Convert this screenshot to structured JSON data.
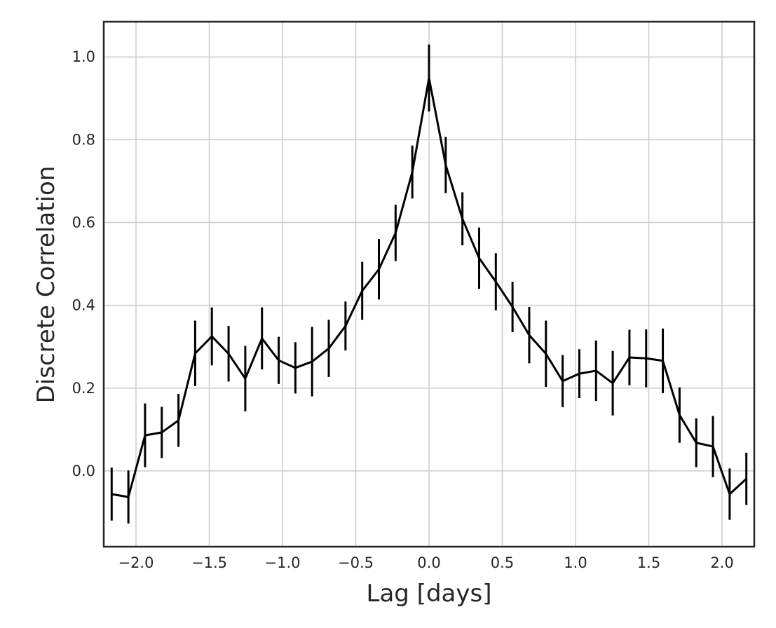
{
  "chart_data": {
    "type": "line",
    "xlabel": "Lag [days]",
    "ylabel": "Discrete Correlation",
    "x": [
      -2.166,
      -2.052,
      -1.938,
      -1.824,
      -1.71,
      -1.596,
      -1.482,
      -1.368,
      -1.254,
      -1.14,
      -1.026,
      -0.912,
      -0.798,
      -0.684,
      -0.57,
      -0.456,
      -0.342,
      -0.228,
      -0.114,
      0.0,
      0.114,
      0.228,
      0.342,
      0.456,
      0.57,
      0.684,
      0.798,
      0.912,
      1.026,
      1.14,
      1.254,
      1.368,
      1.482,
      1.596,
      1.71,
      1.824,
      1.938,
      2.052,
      2.166
    ],
    "series": [
      {
        "color": "#000000",
        "values": [
          -0.056,
          -0.063,
          0.086,
          0.093,
          0.122,
          0.284,
          0.325,
          0.283,
          0.223,
          0.32,
          0.267,
          0.249,
          0.264,
          0.296,
          0.35,
          0.435,
          0.487,
          0.575,
          0.722,
          0.949,
          0.739,
          0.609,
          0.514,
          0.457,
          0.396,
          0.328,
          0.283,
          0.217,
          0.235,
          0.242,
          0.212,
          0.274,
          0.272,
          0.266,
          0.135,
          0.068,
          0.059,
          -0.056,
          -0.019
        ],
        "errors": [
          0.064,
          0.064,
          0.077,
          0.062,
          0.064,
          0.079,
          0.07,
          0.067,
          0.079,
          0.075,
          0.057,
          0.062,
          0.084,
          0.069,
          0.059,
          0.07,
          0.073,
          0.068,
          0.064,
          0.081,
          0.068,
          0.064,
          0.074,
          0.069,
          0.061,
          0.068,
          0.08,
          0.063,
          0.059,
          0.073,
          0.078,
          0.067,
          0.07,
          0.078,
          0.067,
          0.059,
          0.074,
          0.062,
          0.063
        ]
      }
    ],
    "xlim": [
      -2.22,
      2.22
    ],
    "ylim": [
      -0.183,
      1.085
    ],
    "xticks": [
      {
        "value": -2.0,
        "label": "−2.0"
      },
      {
        "value": -1.5,
        "label": "−1.5"
      },
      {
        "value": -1.0,
        "label": "−1.0"
      },
      {
        "value": -0.5,
        "label": "−0.5"
      },
      {
        "value": 0.0,
        "label": "0.0"
      },
      {
        "value": 0.5,
        "label": "0.5"
      },
      {
        "value": 1.0,
        "label": "1.0"
      },
      {
        "value": 1.5,
        "label": "1.5"
      },
      {
        "value": 2.0,
        "label": "2.0"
      }
    ],
    "yticks": [
      {
        "value": 0.0,
        "label": "0.0"
      },
      {
        "value": 0.2,
        "label": "0.2"
      },
      {
        "value": 0.4,
        "label": "0.4"
      },
      {
        "value": 0.6,
        "label": "0.6"
      },
      {
        "value": 0.8,
        "label": "0.8"
      },
      {
        "value": 1.0,
        "label": "1.0"
      }
    ],
    "grid": true
  }
}
